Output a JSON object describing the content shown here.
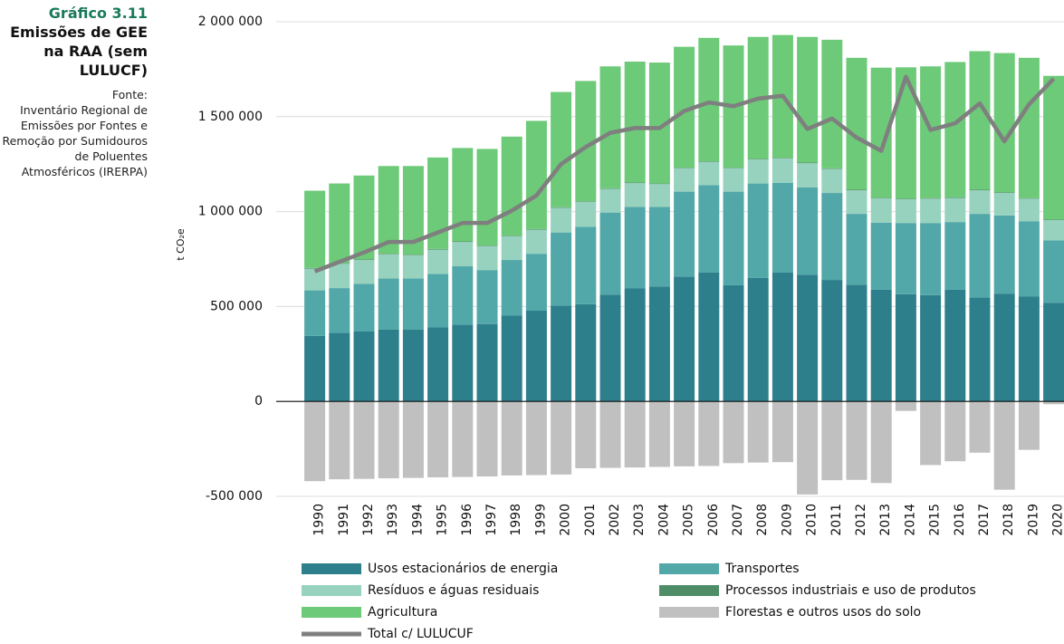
{
  "chart_data": {
    "type": "bar",
    "stacked": true,
    "chart_number": "Gráfico 3.11",
    "title": "Emissões de GEE na RAA (sem LULUCF)",
    "source_label": "Fonte:",
    "source": "Inventário Regional de Emissões por Fontes e Remoção por Sumidouros de Poluentes Atmosféricos (IRERPA)",
    "y_label": "t CO₂e",
    "categories": [
      "1990",
      "1991",
      "1992",
      "1993",
      "1994",
      "1995",
      "1996",
      "1997",
      "1998",
      "1999",
      "2000",
      "2001",
      "2002",
      "2003",
      "2004",
      "2005",
      "2006",
      "2007",
      "2008",
      "2009",
      "2010",
      "2011",
      "2012",
      "2013",
      "2014",
      "2015",
      "2016",
      "2017",
      "2018",
      "2019",
      "2020"
    ],
    "series": [
      {
        "name": "Usos estacionários de energia",
        "color": "#2e7f8c",
        "values": [
          345000,
          362000,
          370000,
          378000,
          378000,
          390000,
          405000,
          408000,
          452000,
          478000,
          505000,
          512000,
          563000,
          595000,
          605000,
          658000,
          680000,
          612000,
          650000,
          680000,
          668000,
          640000,
          615000,
          588000,
          565000,
          560000,
          588000,
          548000,
          568000,
          552000,
          520000
        ]
      },
      {
        "name": "Transportes",
        "color": "#52a8a8",
        "values": [
          240000,
          235000,
          250000,
          270000,
          270000,
          282000,
          307000,
          284000,
          293000,
          300000,
          385000,
          408000,
          432000,
          430000,
          420000,
          447000,
          460000,
          493000,
          498000,
          472000,
          460000,
          458000,
          373000,
          354000,
          375000,
          380000,
          357000,
          440000,
          412000,
          396000,
          328000
        ]
      },
      {
        "name": "Resíduos e águas residuais",
        "color": "#97d2bf",
        "values": [
          115000,
          128000,
          125000,
          127000,
          122000,
          128000,
          128000,
          126000,
          125000,
          127000,
          130000,
          132000,
          125000,
          125000,
          120000,
          123000,
          122000,
          123000,
          127000,
          128000,
          127000,
          127000,
          124000,
          128000,
          125000,
          128000,
          127000,
          124000,
          118000,
          120000,
          107000
        ]
      },
      {
        "name": "Processos industriais e uso de produtos",
        "color": "#4f8d68",
        "values": [
          3000,
          3000,
          3000,
          3000,
          3000,
          3000,
          3000,
          3000,
          3000,
          3000,
          3000,
          3000,
          3000,
          3000,
          3000,
          3000,
          3000,
          3000,
          3000,
          3000,
          3000,
          3000,
          3000,
          3000,
          3000,
          3000,
          3000,
          3000,
          3000,
          3000,
          3000
        ]
      },
      {
        "name": "Agricultura",
        "color": "#6dca78",
        "values": [
          407000,
          420000,
          442000,
          462000,
          467000,
          482000,
          492000,
          509000,
          522000,
          570000,
          607000,
          633000,
          642000,
          637000,
          637000,
          637000,
          650000,
          644000,
          642000,
          647000,
          662000,
          677000,
          695000,
          685000,
          692000,
          694000,
          713000,
          730000,
          734000,
          739000,
          757000
        ]
      },
      {
        "name": "Florestas e outros usos do solo",
        "color": "#c0c0c0",
        "values": [
          -420000,
          -410000,
          -408000,
          -405000,
          -403000,
          -400000,
          -398000,
          -395000,
          -390000,
          -388000,
          -385000,
          -352000,
          -350000,
          -348000,
          -345000,
          -342000,
          -340000,
          -325000,
          -322000,
          -320000,
          -490000,
          -415000,
          -413000,
          -430000,
          -50000,
          -335000,
          -315000,
          -270000,
          -465000,
          -255000,
          -15000
        ]
      },
      {
        "name": "Total c/ LULUCUF",
        "color": "#7f7f7f",
        "type": "line",
        "values": [
          685000,
          735000,
          785000,
          840000,
          840000,
          890000,
          940000,
          940000,
          1005000,
          1085000,
          1250000,
          1340000,
          1415000,
          1440000,
          1440000,
          1530000,
          1575000,
          1555000,
          1595000,
          1610000,
          1435000,
          1490000,
          1390000,
          1320000,
          1710000,
          1430000,
          1465000,
          1570000,
          1370000,
          1565000,
          1700000
        ]
      }
    ],
    "ylim": [
      -500000,
      2000000
    ],
    "yticks": [
      {
        "value": -500000,
        "label": "-500 000"
      },
      0,
      {
        "value": 500000,
        "label": "500 000"
      },
      {
        "value": 1000000,
        "label": "1 000 000"
      },
      {
        "value": 1500000,
        "label": "1 500 000"
      },
      {
        "value": 2000000,
        "label": "2 000 000"
      }
    ],
    "grid": true
  }
}
